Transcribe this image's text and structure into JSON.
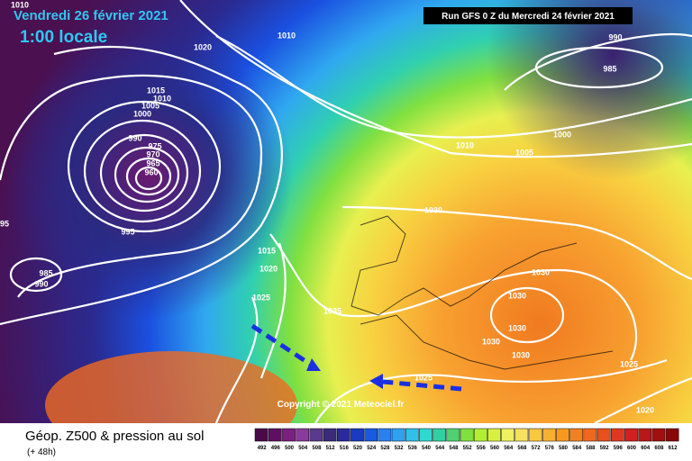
{
  "header": {
    "date": "Vendredi 26 février 2021",
    "time": "1:00 locale",
    "run": "Run GFS 0 Z du Mercredi 24 février 2021"
  },
  "isobar_labels": [
    "1010",
    "1020",
    "1010",
    "990",
    "985",
    "1015",
    "1010",
    "1005",
    "1000",
    "990",
    "975",
    "970",
    "965",
    "960",
    "995",
    "95",
    "985",
    "990",
    "1010",
    "1005",
    "1000",
    "1030",
    "1015",
    "1020",
    "1025",
    "1035",
    "1030",
    "1030",
    "1030",
    "1030",
    "1030",
    "1025",
    "1025",
    "1020"
  ],
  "copyright": "Copyright © 2021 Meteociel.fr",
  "footer": {
    "title": "Géop. Z500 & pression au sol",
    "lead": "(+ 48h)"
  },
  "legend": {
    "ticks": [
      "492",
      "496",
      "500",
      "504",
      "508",
      "512",
      "516",
      "520",
      "524",
      "528",
      "532",
      "536",
      "540",
      "544",
      "548",
      "552",
      "556",
      "560",
      "564",
      "568",
      "572",
      "576",
      "580",
      "584",
      "588",
      "592",
      "596",
      "600",
      "604",
      "608",
      "612"
    ],
    "colors": [
      "#4a0a4a",
      "#5e1060",
      "#7a2080",
      "#8a3a9a",
      "#5a3a8a",
      "#3a2a7a",
      "#2a2a9a",
      "#1a3ac0",
      "#1a5ae0",
      "#2a80f0",
      "#30a0f0",
      "#30c0e8",
      "#30d8d0",
      "#30d0a0",
      "#50d070",
      "#80e040",
      "#b0f030",
      "#d8f040",
      "#f0f060",
      "#f8e060",
      "#f8c840",
      "#f8b030",
      "#f89820",
      "#f08020",
      "#f06820",
      "#e85020",
      "#e03820",
      "#d02020",
      "#b81818",
      "#a01010",
      "#880808"
    ]
  }
}
